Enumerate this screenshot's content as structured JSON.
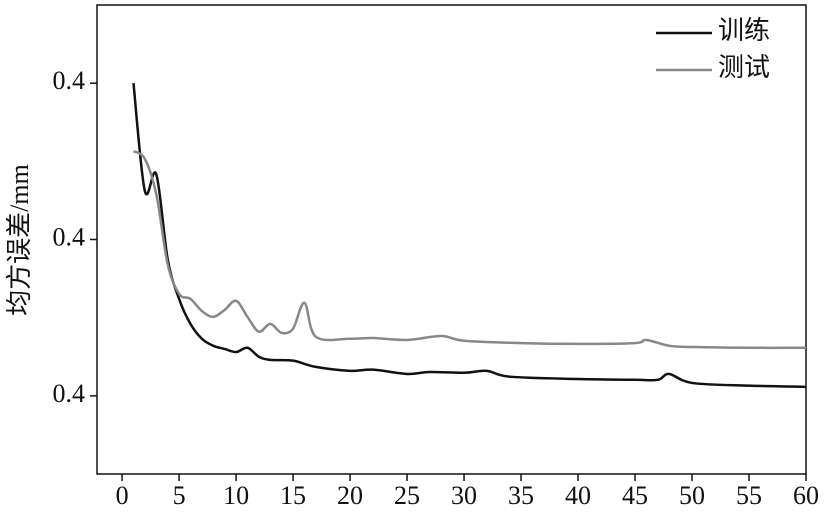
{
  "chart_data": {
    "type": "line",
    "ylabel": "均方误差/mm",
    "xlim": [
      -2.2,
      60
    ],
    "xticks": [
      0,
      5,
      10,
      15,
      20,
      25,
      30,
      35,
      40,
      45,
      50,
      55,
      60
    ],
    "ylim": [
      0.34,
      0.46
    ],
    "yticks": [
      {
        "value": 0.36,
        "label": "0.4"
      },
      {
        "value": 0.4,
        "label": "0.4"
      },
      {
        "value": 0.44,
        "label": "0.4"
      }
    ],
    "legend": "upper right",
    "series": [
      {
        "name": "训练",
        "color": "#111111",
        "x": [
          1,
          2,
          3,
          4,
          5,
          6,
          7,
          8,
          9,
          10,
          11,
          12,
          13,
          15,
          17,
          20,
          22,
          25,
          27,
          30,
          32,
          34,
          40,
          45,
          47,
          48,
          50,
          55,
          60
        ],
        "values": [
          0.44,
          0.4124,
          0.4167,
          0.395,
          0.3848,
          0.3784,
          0.3746,
          0.3728,
          0.372,
          0.3712,
          0.3723,
          0.37,
          0.3692,
          0.369,
          0.3674,
          0.3664,
          0.3667,
          0.3656,
          0.3661,
          0.3659,
          0.3664,
          0.3649,
          0.3643,
          0.3641,
          0.3641,
          0.3656,
          0.3633,
          0.3626,
          0.3623
        ]
      },
      {
        "name": "测试",
        "color": "#888888",
        "x": [
          1,
          2,
          3,
          4,
          5,
          6,
          7,
          8,
          9,
          10,
          11,
          12,
          13,
          14,
          15,
          16,
          17,
          20,
          22,
          25,
          28,
          30,
          35,
          40,
          45,
          46,
          48,
          50,
          55,
          60
        ],
        "values": [
          0.4226,
          0.4206,
          0.4116,
          0.3937,
          0.3861,
          0.3848,
          0.3817,
          0.3802,
          0.382,
          0.3843,
          0.3802,
          0.3764,
          0.3784,
          0.3761,
          0.3772,
          0.3838,
          0.3751,
          0.3746,
          0.3748,
          0.3743,
          0.3753,
          0.3741,
          0.3735,
          0.3733,
          0.3735,
          0.3743,
          0.3728,
          0.3725,
          0.3723,
          0.3723
        ]
      }
    ]
  }
}
